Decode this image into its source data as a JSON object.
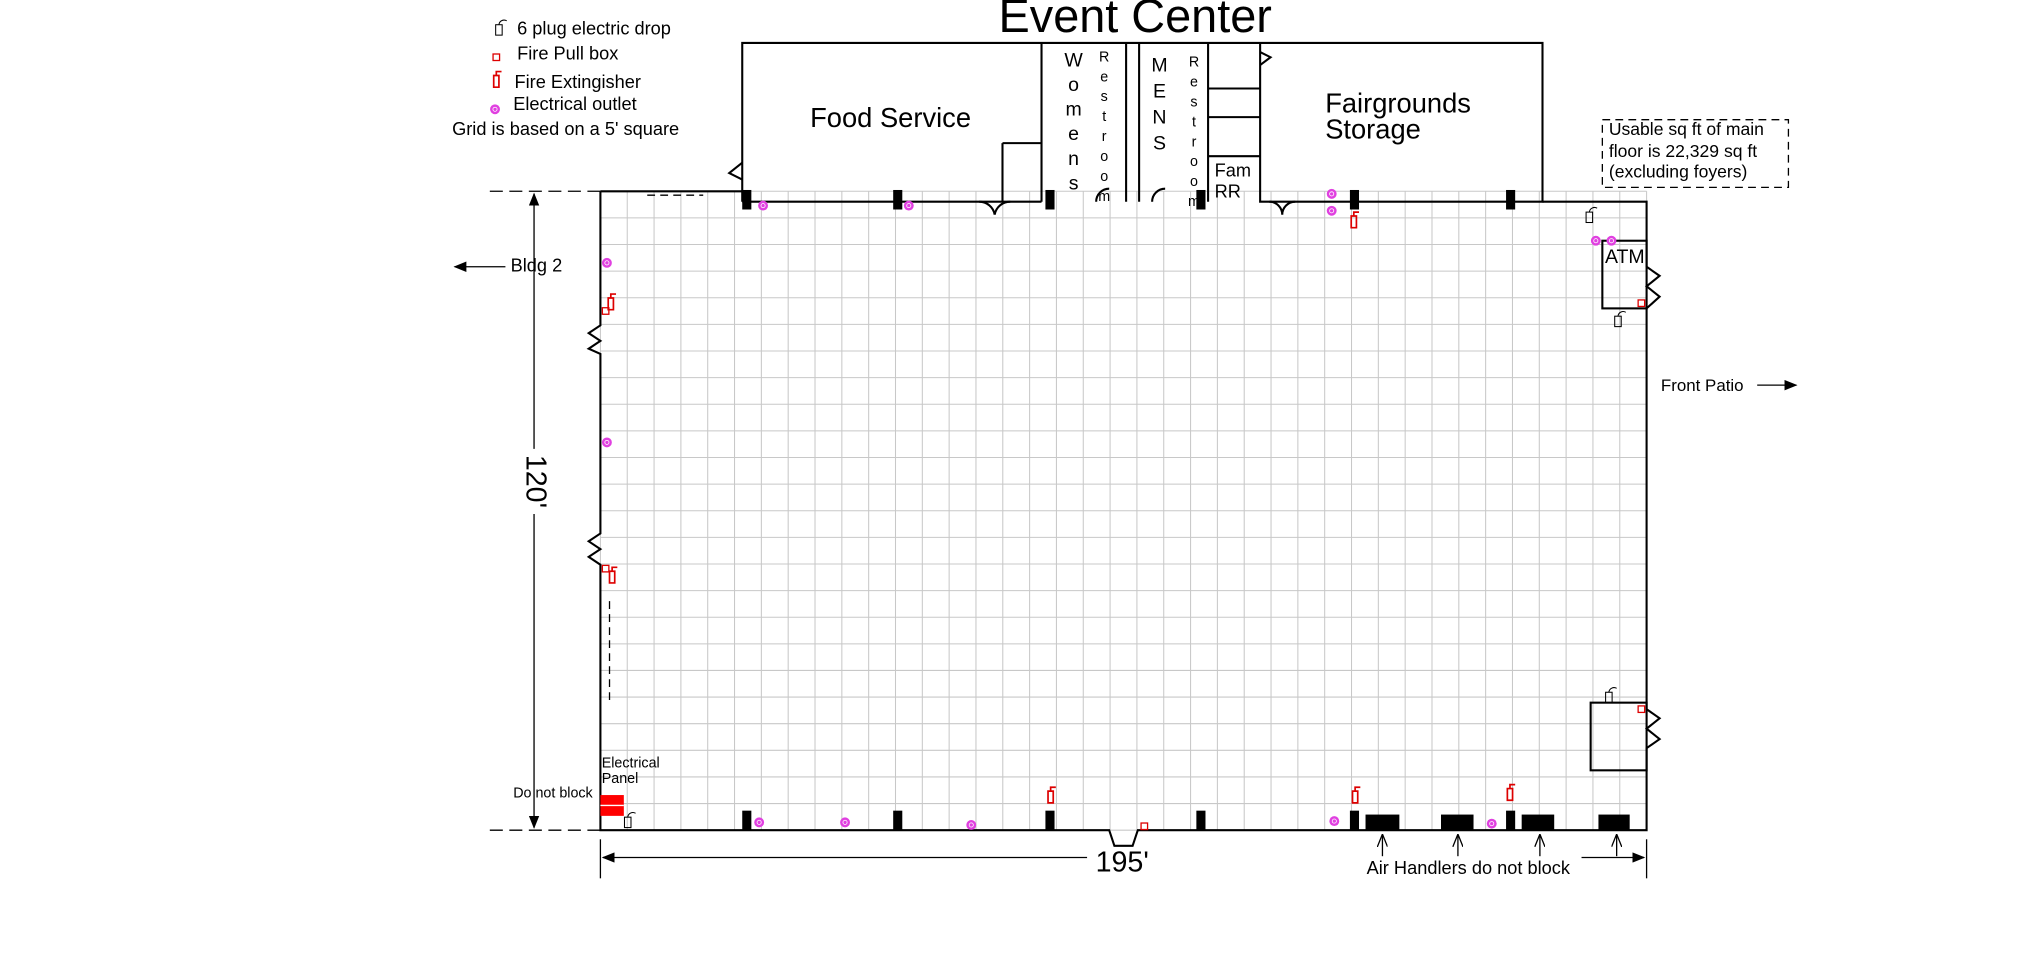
{
  "header": {
    "title": "Event Center"
  },
  "legend": {
    "items": [
      "6 plug electric drop",
      "Fire Pull box",
      "Fire Extingisher",
      "Electrical outlet"
    ],
    "note": "Grid is based on a 5' square"
  },
  "rooms": {
    "food_service": "Food Service",
    "womens": "Womens",
    "womens_restroom": "Restroom",
    "mens": "MENS",
    "mens_restroom": "Restroom",
    "family": [
      "Fam",
      "RR"
    ],
    "storage": [
      "Fairgrounds",
      "Storage"
    ],
    "atm": "ATM"
  },
  "labels": {
    "bldg2": "Bldg 2",
    "front_patio": "Front Patio",
    "panel": [
      "Electrical",
      "Panel"
    ],
    "do_not_block": "Do not block",
    "air_handlers": "Air Handlers do not block",
    "usable": [
      "Usable sq ft of main",
      "floor is 22,329 sq ft",
      "(excluding foyers)"
    ]
  },
  "dimensions": {
    "height": "120'",
    "width": "195'"
  }
}
